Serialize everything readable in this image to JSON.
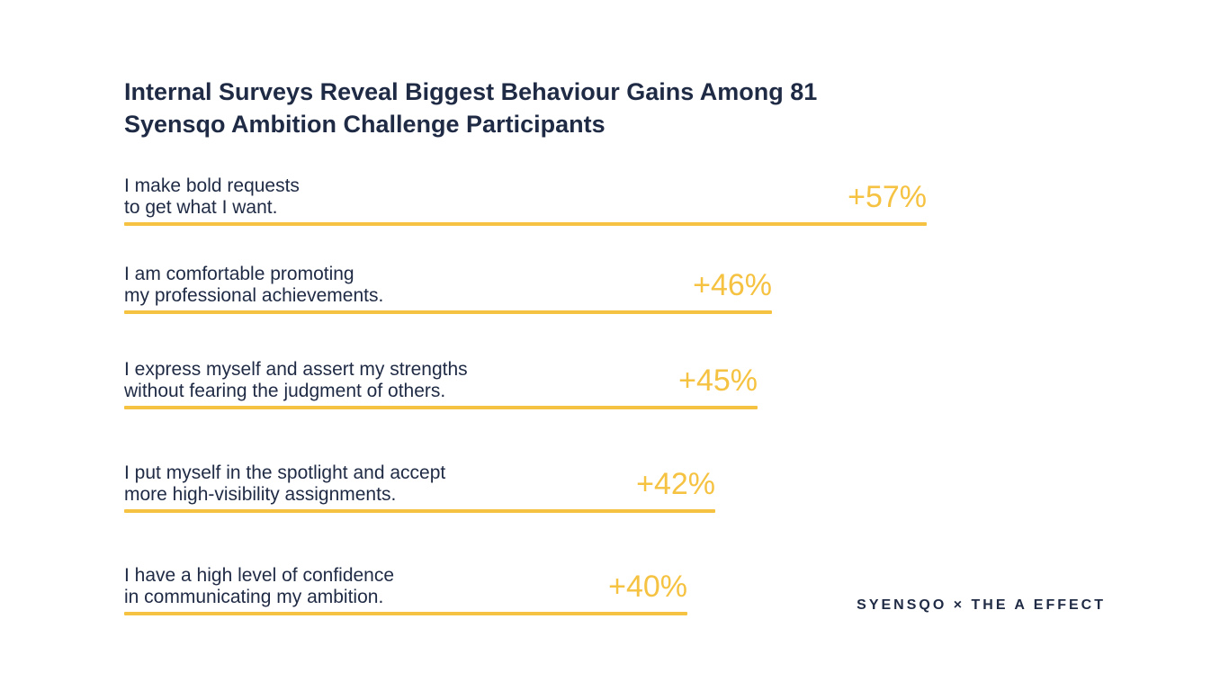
{
  "chart_data": {
    "type": "bar",
    "orientation": "horizontal",
    "title_lines": [
      "Internal Surveys Reveal Biggest Behaviour Gains Among 81",
      "Syensqo Ambition Challenge Participants"
    ],
    "categories": [
      [
        "I make bold requests",
        "to get what I want."
      ],
      [
        "I am comfortable promoting",
        "my professional achievements."
      ],
      [
        "I express myself and assert my strengths",
        "without fearing the judgment of others."
      ],
      [
        "I put myself in the spotlight and accept",
        "more high-visibility assignments."
      ],
      [
        "I have a high level of confidence",
        "in communicating my ambition."
      ]
    ],
    "values": [
      57,
      46,
      45,
      42,
      40
    ],
    "value_labels": [
      "+57%",
      "+46%",
      "+45%",
      "+42%",
      "+40%"
    ],
    "bar_color": "#f5c242",
    "xlim": [
      0,
      57
    ]
  },
  "footer": {
    "brand": "SYENSQO × THE A EFFECT"
  },
  "colors": {
    "text": "#1f2a44",
    "accent": "#f5c242"
  }
}
